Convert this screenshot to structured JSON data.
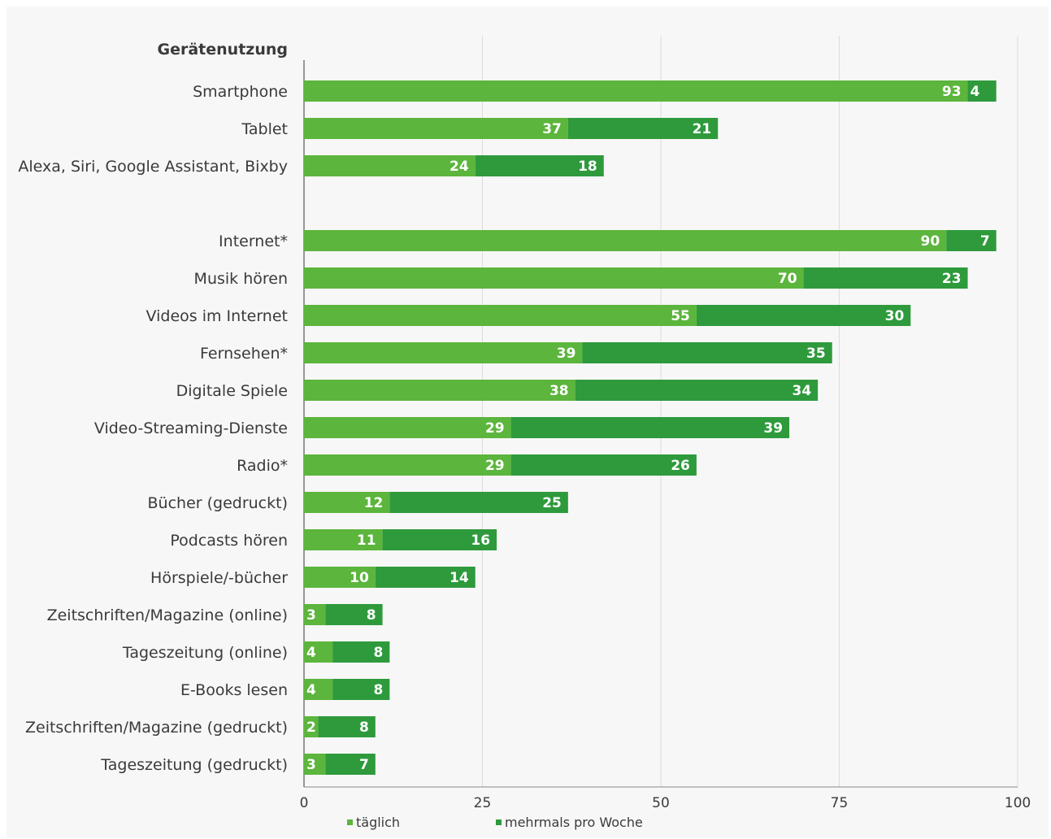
{
  "chart_data": {
    "type": "bar",
    "orientation": "horizontal",
    "stacked": true,
    "group_title": "Gerätenutzung",
    "categories": [
      "Smartphone",
      "Tablet",
      "Alexa, Siri, Google Assistant, Bixby",
      "Internet*",
      "Musik hören",
      "Videos im Internet",
      "Fernsehen*",
      "Digitale Spiele",
      "Video-Streaming-Dienste",
      "Radio*",
      "Bücher (gedruckt)",
      "Podcasts hören",
      "Hörspiele/-bücher",
      "Zeitschriften/Magazine (online)",
      "Tageszeitung (online)",
      "E-Books lesen",
      "Zeitschriften/Magazine (gedruckt)",
      "Tageszeitung (gedruckt)"
    ],
    "series": [
      {
        "name": "täglich",
        "color": "#5cb53c",
        "values": [
          93,
          37,
          24,
          90,
          70,
          55,
          39,
          38,
          29,
          29,
          12,
          11,
          10,
          3,
          4,
          4,
          2,
          3
        ]
      },
      {
        "name": "mehrmals pro Woche",
        "color": "#2e9a3c",
        "values": [
          4,
          21,
          18,
          7,
          23,
          30,
          35,
          34,
          39,
          26,
          25,
          16,
          14,
          8,
          8,
          8,
          8,
          7
        ]
      }
    ],
    "xlim": [
      0,
      100
    ],
    "xticks": [
      0,
      25,
      50,
      75,
      100
    ],
    "grid": true,
    "legend_position": "bottom"
  }
}
